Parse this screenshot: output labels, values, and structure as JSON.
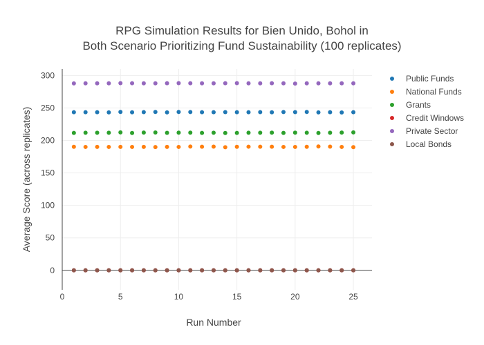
{
  "chart_data": {
    "type": "scatter",
    "title_lines": [
      "RPG Simulation Results for Bien Unido, Bohol in",
      "Both Scenario Prioritizing Fund Sustainability (100 replicates)"
    ],
    "xlabel": "Run Number",
    "ylabel": "Average Score (across replicates)",
    "xlim": [
      0,
      26.6
    ],
    "ylim": [
      -30,
      310
    ],
    "xticks": [
      0,
      5,
      10,
      15,
      20,
      25
    ],
    "yticks": [
      0,
      50,
      100,
      150,
      200,
      250,
      300
    ],
    "grid": true,
    "legend_position": "top-right",
    "x": [
      1,
      2,
      3,
      4,
      5,
      6,
      7,
      8,
      9,
      10,
      11,
      12,
      13,
      14,
      15,
      16,
      17,
      18,
      19,
      20,
      21,
      22,
      23,
      24,
      25
    ],
    "series": [
      {
        "name": "Public Funds",
        "color": "#1f77b4",
        "values": [
          243.5,
          243.4,
          243.4,
          243.2,
          243.8,
          243.3,
          243.6,
          243.9,
          243.2,
          243.8,
          243.7,
          243.4,
          243.5,
          243.6,
          243.5,
          243.5,
          243.6,
          243.3,
          243.7,
          243.6,
          243.8,
          243.2,
          243.5,
          243.1,
          243.4
        ]
      },
      {
        "name": "National Funds",
        "color": "#ff7f0e",
        "values": [
          190.2,
          190.0,
          190.1,
          190.0,
          190.1,
          190.0,
          190.1,
          189.8,
          190.1,
          190.0,
          190.6,
          190.3,
          190.5,
          189.6,
          190.2,
          190.4,
          190.3,
          190.3,
          190.0,
          190.0,
          190.2,
          190.7,
          190.5,
          190.0,
          189.7
        ]
      },
      {
        "name": "Grants",
        "color": "#2ca02c",
        "values": [
          211.6,
          211.9,
          211.8,
          211.8,
          212.4,
          211.5,
          212.1,
          212.3,
          211.7,
          212.0,
          212.0,
          211.6,
          211.9,
          211.5,
          211.6,
          211.8,
          211.9,
          212.0,
          211.6,
          212.0,
          211.8,
          211.4,
          211.8,
          212.1,
          212.4
        ]
      },
      {
        "name": "Credit Windows",
        "color": "#d62728",
        "values": [
          0,
          0,
          0,
          0,
          0,
          0,
          0,
          0,
          0,
          0,
          0,
          0,
          0,
          0,
          0,
          0,
          0,
          0,
          0,
          0,
          0,
          0,
          0,
          0,
          0
        ]
      },
      {
        "name": "Private Sector",
        "color": "#9467bd",
        "values": [
          287.8,
          287.9,
          288.0,
          287.9,
          288.2,
          288.1,
          287.9,
          288.0,
          288.1,
          288.2,
          288.1,
          287.9,
          288.0,
          288.1,
          288.2,
          288.0,
          288.0,
          288.1,
          288.0,
          287.6,
          288.0,
          287.9,
          287.9,
          288.0,
          288.0
        ]
      },
      {
        "name": "Local Bonds",
        "color": "#8c564b",
        "values": [
          0,
          0,
          0,
          0,
          0,
          0,
          0,
          0,
          0,
          0,
          0,
          0,
          0,
          0,
          0,
          0,
          0,
          0,
          0,
          0,
          0,
          0,
          0,
          0,
          0
        ]
      }
    ]
  }
}
